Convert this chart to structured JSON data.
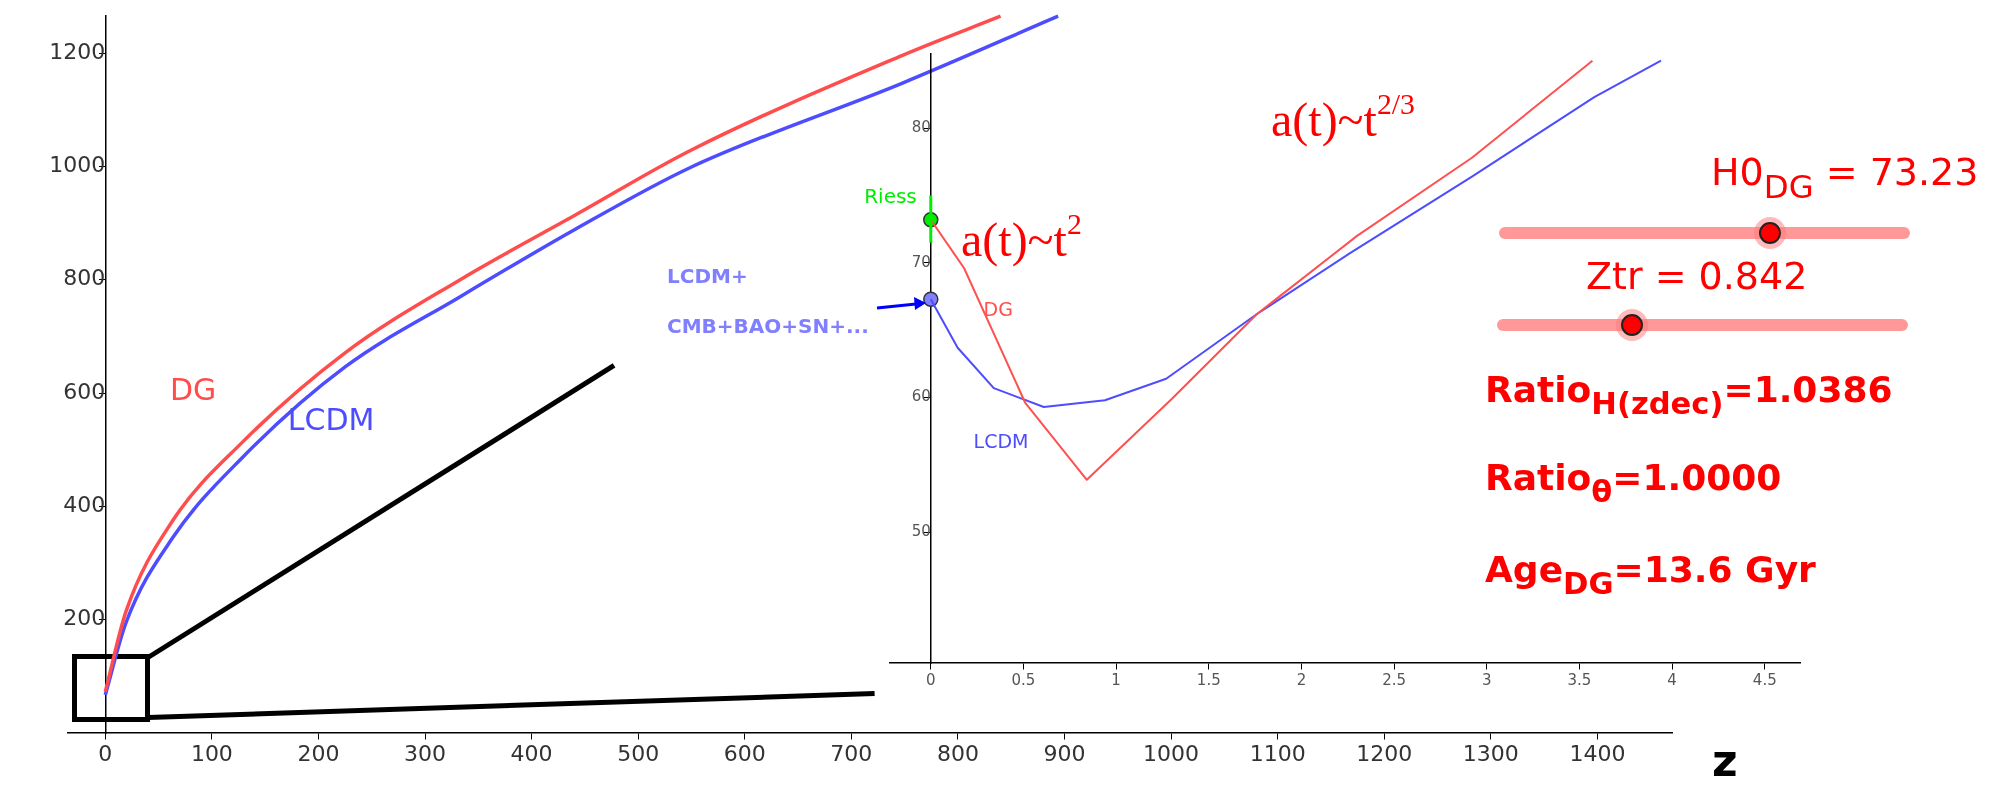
{
  "chart_data": [
    {
      "type": "line",
      "xlabel": "z",
      "xlim": [
        -35,
        1470
      ],
      "ylim": [
        0,
        1265
      ],
      "xticks": [
        0,
        100,
        200,
        300,
        400,
        500,
        600,
        700,
        800,
        900,
        1000,
        1100,
        1200,
        1300,
        1400
      ],
      "yticks": [
        200,
        400,
        600,
        800,
        1000,
        1200
      ],
      "series": [
        {
          "name": "DG",
          "color": "#ff4d4d",
          "x": [
            0,
            19.5,
            63,
            128,
            225,
            333,
            441,
            549,
            748,
            840
          ],
          "values": [
            73,
            215,
            374,
            512,
            671,
            800,
            914,
            1028,
            1196,
            1265
          ]
        },
        {
          "name": "LCDM",
          "color": "#4d4dff",
          "x": [
            0,
            19.5,
            63,
            128,
            225,
            333,
            441,
            549,
            748,
            894
          ],
          "values": [
            67,
            195,
            344,
            485,
            646,
            770,
            889,
            998,
            1147,
            1265
          ]
        }
      ]
    },
    {
      "type": "line",
      "xlim": [
        -0.22,
        4.69
      ],
      "ylim": [
        40.3,
        85.5
      ],
      "xticks": [
        0,
        0.5,
        1,
        1.5,
        2,
        2.5,
        3,
        3.5,
        4,
        4.5
      ],
      "yticks": [
        50,
        60,
        70,
        80
      ],
      "annotations": [
        "a(t)~t$^{2}$",
        "a(t)~t$^{2/3}$"
      ],
      "series": [
        {
          "name": "DG",
          "color": "#ff5050",
          "x": [
            0,
            0.18,
            0.51,
            0.842,
            1.3,
            1.76,
            2.3,
            2.92,
            3.57
          ],
          "values": [
            73.2,
            69.6,
            59.6,
            53.9,
            59.9,
            66.2,
            72,
            77.8,
            85
          ]
        },
        {
          "name": "LCDM",
          "color": "#4d4dff",
          "x": [
            0,
            0.145,
            0.34,
            0.61,
            0.94,
            1.27,
            1.76,
            2.26,
            2.92,
            3.58,
            3.94
          ],
          "values": [
            67.3,
            63.7,
            60.7,
            59.3,
            59.8,
            61.4,
            66.2,
            70.7,
            76.4,
            82.3,
            85
          ]
        },
        {
          "type": "scatter",
          "name": "Riess",
          "color": "#00ee00",
          "x": [
            0
          ],
          "values": [
            73.2
          ],
          "errors": [
            [
              71.5,
              75
            ]
          ]
        },
        {
          "type": "scatter",
          "name": "LCDM+ CMB+BAO+SN+...",
          "color": "#7f7fff",
          "x": [
            0
          ],
          "values": [
            67.3
          ]
        }
      ]
    },
    {
      "type": "other",
      "annotations": [
        "H0$_{DG}$ = 73.23",
        "Ztr = 0.842",
        "Ratio$_{H(zdec)}$=1.0386",
        "Ratio$_{θ}$=1.0000",
        "Age$_{DG}$=13.6 Gyr"
      ]
    }
  ]
}
